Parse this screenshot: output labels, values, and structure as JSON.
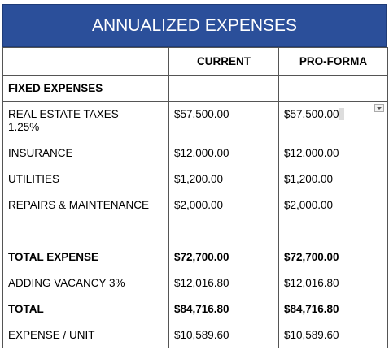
{
  "header": {
    "title": "ANNUALIZED EXPENSES"
  },
  "table": {
    "columns": [
      "CURRENT",
      "PRO-FORMA"
    ],
    "rows": [
      {
        "cells": [
          "FIXED EXPENSES"
        ],
        "bold": true
      },
      {
        "cells": [
          "REAL ESTATE TAXES\n1.25%",
          "$57,500.00",
          "$57,500.00"
        ],
        "dropdown": true
      },
      {
        "cells": [
          "INSURANCE",
          "$12,000.00",
          "$12,000.00"
        ]
      },
      {
        "cells": [
          "UTILITIES",
          "$1,200.00",
          "$1,200.00"
        ]
      },
      {
        "cells": [
          "REPAIRS & MAINTENANCE",
          "$2,000.00",
          "$2,000.00"
        ]
      },
      {
        "cells": []
      },
      {
        "cells": [
          "TOTAL EXPENSE",
          "$72,700.00",
          "$72,700.00"
        ],
        "bold": true
      },
      {
        "cells": [
          "ADDING VACANCY 3%",
          "$12,016.80",
          "$12,016.80"
        ]
      },
      {
        "cells": [
          "TOTAL",
          "$84,716.80",
          "$84,716.80"
        ],
        "bold": true
      },
      {
        "cells": [
          "EXPENSE / UNIT",
          "$10,589.60",
          "$10,589.60"
        ]
      }
    ]
  }
}
